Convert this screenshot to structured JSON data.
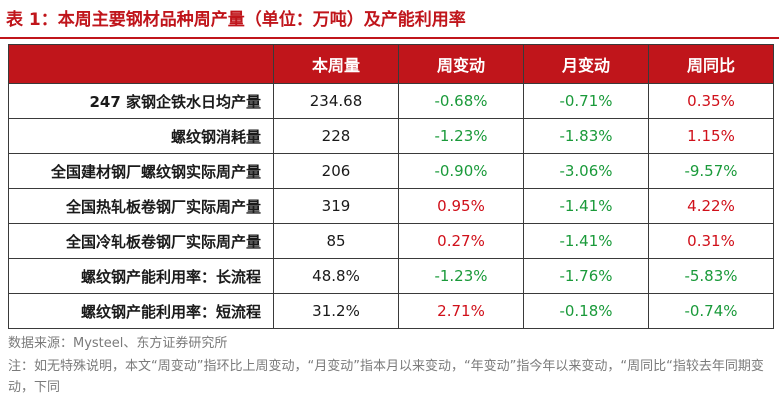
{
  "title": "表 1：本周主要钢材品种周产量（单位：万吨）及产能利用率",
  "table": {
    "headers": [
      "",
      "本周量",
      "周变动",
      "月变动",
      "周同比"
    ],
    "rows": [
      {
        "label": "247 家钢企铁水日均产量",
        "value": "234.68",
        "week": "-0.68%",
        "month": "-0.71%",
        "yoy": "0.35%"
      },
      {
        "label": "螺纹钢消耗量",
        "value": "228",
        "week": "-1.23%",
        "month": "-1.83%",
        "yoy": "1.15%"
      },
      {
        "label": "全国建材钢厂螺纹钢实际周产量",
        "value": "206",
        "week": "-0.90%",
        "month": "-3.06%",
        "yoy": "-9.57%"
      },
      {
        "label": "全国热轧板卷钢厂实际周产量",
        "value": "319",
        "week": "0.95%",
        "month": "-1.41%",
        "yoy": "4.22%"
      },
      {
        "label": "全国冷轧板卷钢厂实际周产量",
        "value": "85",
        "week": "0.27%",
        "month": "-1.41%",
        "yoy": "0.31%"
      },
      {
        "label": "螺纹钢产能利用率：长流程",
        "value": "48.8%",
        "week": "-1.23%",
        "month": "-1.76%",
        "yoy": "-5.83%"
      },
      {
        "label": "螺纹钢产能利用率：短流程",
        "value": "31.2%",
        "week": "2.71%",
        "month": "-0.18%",
        "yoy": "-0.74%"
      }
    ]
  },
  "source": "数据来源：Mysteel、东方证券研究所",
  "note": "注：如无特殊说明，本文“周变动”指环比上周变动，“月变动”指本月以来变动，“年变动”指今年以来变动，“周同比“指较去年同期变动，下同",
  "colors": {
    "accent": "#c0151b",
    "positive": "#d0101a",
    "negative": "#1a9a3a"
  }
}
